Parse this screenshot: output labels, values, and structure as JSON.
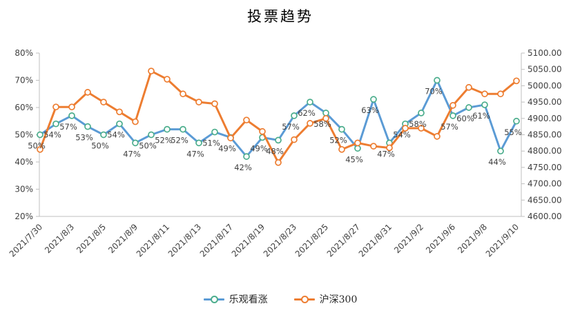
{
  "title": "投票趋势",
  "colors": {
    "optimistic_line": "#5B9BD5",
    "optimistic_marker": "#4BAD8C",
    "hs300_line": "#ED7D31",
    "hs300_marker": "#ED7D31",
    "axis_line": "#BFBFBF",
    "axis_text": "#404040",
    "data_label_text": "#3F3F3F"
  },
  "legend": [
    {
      "label": "乐观看涨",
      "color": "#5B9BD5",
      "marker_color": "#4BAD8C"
    },
    {
      "label": "沪深300",
      "color": "#ED7D31",
      "marker_color": "#ED7D31"
    }
  ],
  "chart_data": {
    "type": "line",
    "title": "投票趋势",
    "n_points": 31,
    "x_tick_indices": [
      0,
      2,
      4,
      6,
      8,
      10,
      12,
      14,
      16,
      18,
      20,
      22,
      24,
      26,
      28,
      30
    ],
    "x_tick_labels": [
      "2021/7/30",
      "2021/8/3",
      "2021/8/5",
      "2021/8/9",
      "2021/8/11",
      "2021/8/13",
      "2021/8/17",
      "2021/8/19",
      "2021/8/23",
      "2021/8/25",
      "2021/8/27",
      "2021/8/31",
      "2021/9/2",
      "2021/9/6",
      "2021/9/8",
      "2021/9/10"
    ],
    "left_axis": {
      "min": 20,
      "max": 80,
      "step": 10,
      "ticks": [
        "20%",
        "30%",
        "40%",
        "50%",
        "60%",
        "70%",
        "80%"
      ]
    },
    "right_axis": {
      "min": 4600,
      "max": 5100,
      "step": 50,
      "ticks": [
        "4600.00",
        "4650.00",
        "4700.00",
        "4750.00",
        "4800.00",
        "4850.00",
        "4900.00",
        "4950.00",
        "5000.00",
        "5050.00",
        "5100.00"
      ]
    },
    "grid": false,
    "legend_position": "bottom",
    "series": [
      {
        "name": "乐观看涨",
        "axis": "left",
        "color": "#5B9BD5",
        "marker_color": "#4BAD8C",
        "values": [
          50,
          54,
          57,
          53,
          50,
          54,
          47,
          50,
          52,
          52,
          47,
          51,
          49,
          42,
          49,
          48,
          57,
          62,
          58,
          52,
          45,
          63,
          47,
          54,
          58,
          70,
          57,
          60,
          61,
          44,
          55
        ],
        "labels": [
          "50%",
          "54%",
          "57%",
          "53%",
          "50%",
          "54%",
          "47%",
          "50%",
          "52%",
          "52%",
          "47%",
          "51%",
          "49%",
          "42%",
          "49%",
          "48%",
          "57%",
          "62%",
          "58%",
          "52%",
          "45%",
          "63%",
          "47%",
          "54%",
          "58%",
          "70%",
          "57%",
          "60%",
          "61%",
          "44%",
          "55%"
        ]
      },
      {
        "name": "沪深300",
        "axis": "right",
        "color": "#ED7D31",
        "marker_color": "#ED7D31",
        "values": [
          4805,
          4935,
          4935,
          4980,
          4950,
          4920,
          4890,
          5045,
          5020,
          4975,
          4950,
          4945,
          4840,
          4895,
          4860,
          4765,
          4835,
          4885,
          4900,
          4805,
          4825,
          4815,
          4810,
          4870,
          4870,
          4845,
          4940,
          4995,
          4975,
          4975,
          5015
        ]
      }
    ]
  }
}
